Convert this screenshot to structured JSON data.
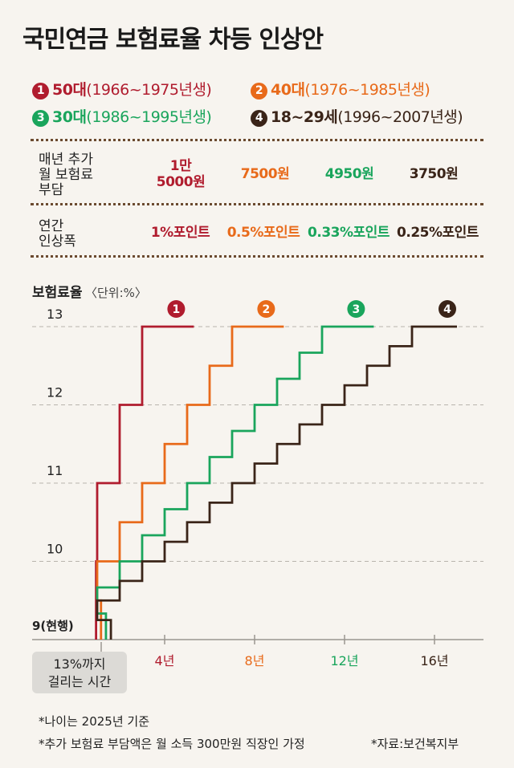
{
  "title": "국민연금 보험료율 차등 인상안",
  "legend": [
    {
      "marker": "1",
      "age": "50대",
      "years": "(1966~1975년생)",
      "color": "#b01c2e"
    },
    {
      "marker": "2",
      "age": "40대",
      "years": "(1976~1985년생)",
      "color": "#e86a1a"
    },
    {
      "marker": "3",
      "age": "30대",
      "years": "(1986~1995년생)",
      "color": "#1aa55c"
    },
    {
      "marker": "4",
      "age": "18~29세",
      "years": "(1996~2007년생)",
      "color": "#3a2418"
    }
  ],
  "table": {
    "row1_label": [
      "매년 추가",
      "월 보험료",
      "부담"
    ],
    "row1_values": [
      [
        "1만",
        "5000원"
      ],
      [
        "7500원"
      ],
      [
        "4950원"
      ],
      [
        "3750원"
      ]
    ],
    "row2_label": [
      "연간",
      "인상폭"
    ],
    "row2_values": [
      "1%포인트",
      "0.5%포인트",
      "0.33%포인트",
      "0.25%포인트"
    ]
  },
  "chart_data": {
    "type": "line",
    "title": "",
    "ylabel": "보험료율",
    "yunit": "〈단위:%〉",
    "xlabel": "",
    "ylim": [
      9,
      13
    ],
    "xlim": [
      0,
      16.5
    ],
    "y_ticks": [
      "13",
      "12",
      "11",
      "10",
      "9(현행)"
    ],
    "y_tick_values": [
      13,
      12,
      11,
      10,
      9
    ],
    "x_ticks": [
      {
        "value": 4,
        "label": "4년",
        "color": "#b01c2e"
      },
      {
        "value": 8,
        "label": "8년",
        "color": "#e86a1a"
      },
      {
        "value": 12,
        "label": "12년",
        "color": "#1aa55c"
      },
      {
        "value": 16,
        "label": "16년",
        "color": "#3a2418"
      }
    ],
    "grid": true,
    "series": [
      {
        "name": "1",
        "color": "#b01c2e",
        "annual_increase": 1.0,
        "years_to_13": 4,
        "end_x": 5.3
      },
      {
        "name": "2",
        "color": "#e86a1a",
        "annual_increase": 0.5,
        "years_to_13": 8,
        "end_x": 9.3
      },
      {
        "name": "3",
        "color": "#1aa55c",
        "annual_increase": 0.33,
        "years_to_13": 12,
        "end_x": 13.3
      },
      {
        "name": "4",
        "color": "#3a2418",
        "annual_increase": 0.25,
        "years_to_13": 16,
        "end_x": 17.0
      }
    ]
  },
  "time_note": [
    "13%까지",
    "걸리는 시간"
  ],
  "footnotes": [
    "*나이는 2025년 기준",
    "*추가 보험료 부담액은 월 소득 300만원 직장인 가정"
  ],
  "source": "*자료:보건복지부"
}
